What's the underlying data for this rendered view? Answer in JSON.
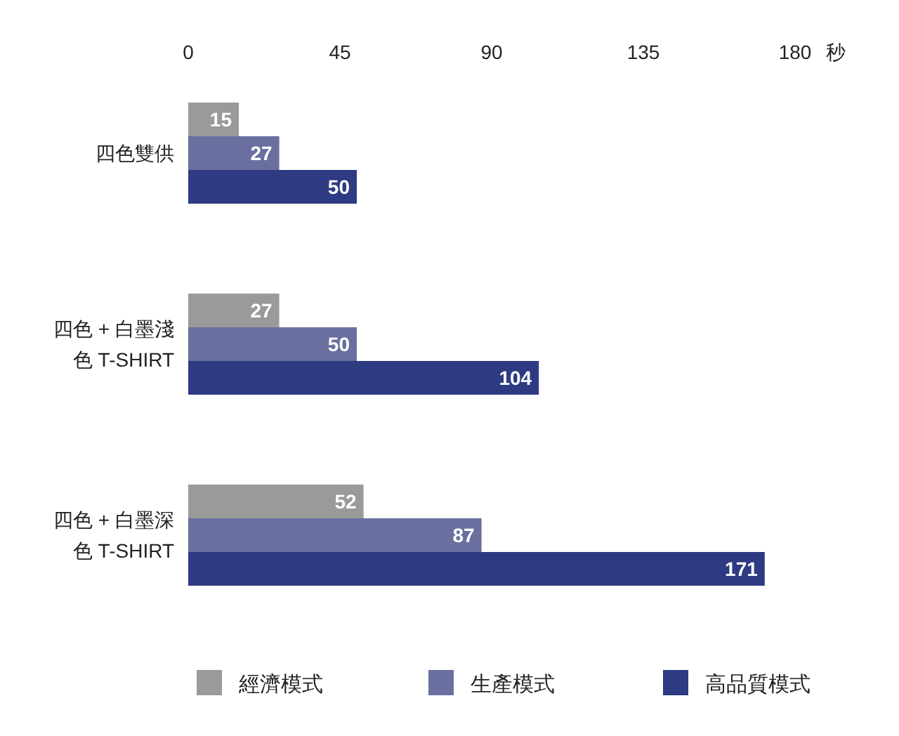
{
  "chart_data": {
    "type": "bar",
    "orientation": "horizontal",
    "xlabel": "秒",
    "categories": [
      "四色雙供",
      "四色 + 白墨淺色 T-SHIRT",
      "四色 + 白墨深色 T-SHIRT"
    ],
    "series": [
      {
        "name": "經濟模式",
        "color": "#9a9a9a",
        "values": [
          15,
          27,
          52
        ]
      },
      {
        "name": "生產模式",
        "color": "#6a6f9f",
        "values": [
          27,
          50,
          87
        ]
      },
      {
        "name": "高品質模式",
        "color": "#2e3a82",
        "values": [
          50,
          104,
          171
        ]
      }
    ],
    "xlim": [
      0,
      180
    ],
    "xticks": [
      0,
      45,
      90,
      135,
      180
    ],
    "data_labels": true,
    "legend": "bottom"
  }
}
